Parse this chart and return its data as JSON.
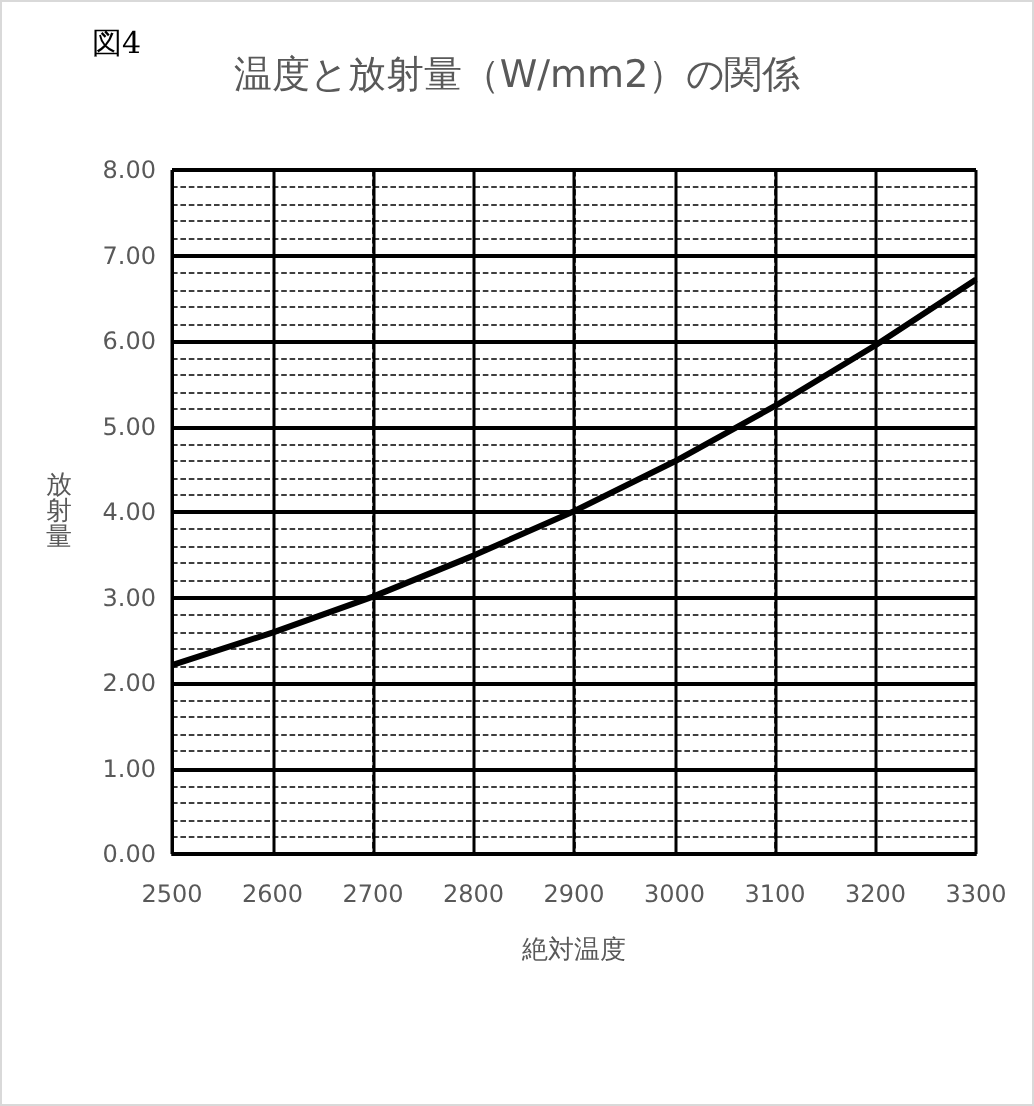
{
  "chart_data": {
    "type": "line",
    "title": "温度と放射量（W/mm2）の関係",
    "subtitle": "図4",
    "xlabel": "絶対温度",
    "ylabel": "放射量",
    "x": [
      2500,
      2600,
      2700,
      2800,
      2900,
      3000,
      3100,
      3200,
      3300
    ],
    "series": [
      {
        "color": "#000000",
        "values": [
          2.21,
          2.59,
          3.01,
          3.49,
          4.01,
          4.59,
          5.24,
          5.95,
          6.72
        ]
      }
    ],
    "xlim": [
      2500,
      3300
    ],
    "xticks": [
      2500,
      2600,
      2700,
      2800,
      2900,
      3000,
      3100,
      3200,
      3300
    ],
    "ylim": [
      0,
      8
    ],
    "yticks": [
      {
        "value": 0,
        "label": "0.00"
      },
      {
        "value": 1,
        "label": "1.00"
      },
      {
        "value": 2,
        "label": "2.00"
      },
      {
        "value": 3,
        "label": "3.00"
      },
      {
        "value": 4,
        "label": "4.00"
      },
      {
        "value": 5,
        "label": "5.00"
      },
      {
        "value": 6,
        "label": "6.00"
      },
      {
        "value": 7,
        "label": "7.00"
      },
      {
        "value": 8,
        "label": "8.00"
      }
    ],
    "grid": true,
    "marker": "none",
    "line_style": "solid"
  }
}
